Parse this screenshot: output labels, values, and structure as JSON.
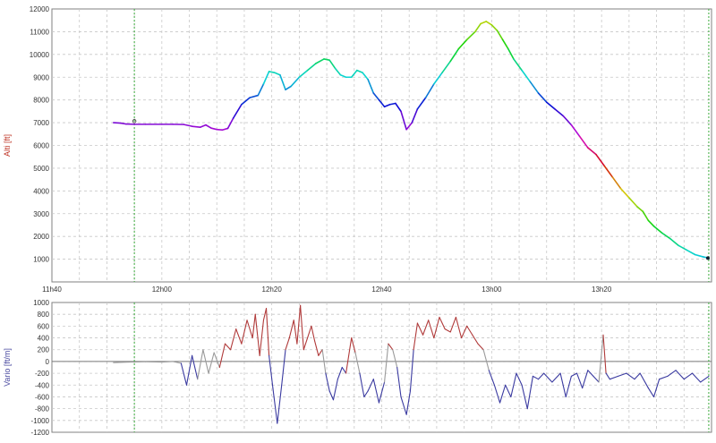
{
  "chart_data": [
    {
      "type": "line",
      "ylabel": "Alti [ft]",
      "ylim": [
        0,
        12000
      ],
      "yticks": [
        1000,
        2000,
        3000,
        4000,
        5000,
        6000,
        7000,
        8000,
        9000,
        10000,
        11000,
        12000
      ],
      "xlim_minutes": [
        0,
        120
      ],
      "xticks": [
        {
          "label": "11h40",
          "minutes": 0
        },
        {
          "label": "12h00",
          "minutes": 20
        },
        {
          "label": "12h20",
          "minutes": 40
        },
        {
          "label": "12h40",
          "minutes": 60
        },
        {
          "label": "13h00",
          "minutes": 80
        },
        {
          "label": "13h20",
          "minutes": 100
        }
      ],
      "marker_minutes": 15,
      "end_marker_minutes": 119.5,
      "color_scale": "altitude-rainbow",
      "grid": true,
      "series": [
        {
          "points": [
            [
              11.2,
              7000
            ],
            [
              12.5,
              6980
            ],
            [
              13.5,
              6940
            ],
            [
              15,
              6930
            ],
            [
              17,
              6930
            ],
            [
              20,
              6930
            ],
            [
              22,
              6930
            ],
            [
              24,
              6920
            ],
            [
              25.5,
              6840
            ],
            [
              27,
              6800
            ],
            [
              28,
              6900
            ],
            [
              29,
              6760
            ],
            [
              30,
              6700
            ],
            [
              31,
              6680
            ],
            [
              32,
              6750
            ],
            [
              33,
              7200
            ],
            [
              34.5,
              7800
            ],
            [
              36,
              8100
            ],
            [
              37.5,
              8200
            ],
            [
              38.5,
              8700
            ],
            [
              39.5,
              9250
            ],
            [
              40.5,
              9200
            ],
            [
              41.5,
              9100
            ],
            [
              42.5,
              8450
            ],
            [
              43.5,
              8600
            ],
            [
              45,
              9000
            ],
            [
              46.5,
              9300
            ],
            [
              48,
              9600
            ],
            [
              49.5,
              9800
            ],
            [
              50.5,
              9750
            ],
            [
              51.5,
              9400
            ],
            [
              52.5,
              9100
            ],
            [
              53.5,
              9000
            ],
            [
              54.5,
              9000
            ],
            [
              55.5,
              9300
            ],
            [
              56.5,
              9200
            ],
            [
              57.5,
              8900
            ],
            [
              58.5,
              8300
            ],
            [
              59.5,
              8000
            ],
            [
              60.5,
              7700
            ],
            [
              61.5,
              7800
            ],
            [
              62.5,
              7850
            ],
            [
              63.5,
              7500
            ],
            [
              64.5,
              6700
            ],
            [
              65.5,
              7000
            ],
            [
              66.5,
              7600
            ],
            [
              68,
              8100
            ],
            [
              69.5,
              8700
            ],
            [
              71,
              9200
            ],
            [
              72.5,
              9700
            ],
            [
              74,
              10250
            ],
            [
              75.5,
              10650
            ],
            [
              77,
              11000
            ],
            [
              78,
              11350
            ],
            [
              79,
              11450
            ],
            [
              80,
              11300
            ],
            [
              81,
              11050
            ],
            [
              82,
              10650
            ],
            [
              83,
              10250
            ],
            [
              84,
              9800
            ],
            [
              85.5,
              9300
            ],
            [
              87,
              8800
            ],
            [
              88.5,
              8300
            ],
            [
              90,
              7900
            ],
            [
              91.5,
              7600
            ],
            [
              93,
              7300
            ],
            [
              94.5,
              6900
            ],
            [
              96,
              6400
            ],
            [
              97.5,
              5900
            ],
            [
              99,
              5600
            ],
            [
              100.5,
              5100
            ],
            [
              102,
              4600
            ],
            [
              103.5,
              4100
            ],
            [
              105,
              3700
            ],
            [
              106.5,
              3300
            ],
            [
              107.5,
              3100
            ],
            [
              108.5,
              2700
            ],
            [
              109.5,
              2450
            ],
            [
              111,
              2150
            ],
            [
              112.5,
              1900
            ],
            [
              114,
              1600
            ],
            [
              115.5,
              1400
            ],
            [
              117,
              1200
            ],
            [
              118.5,
              1100
            ],
            [
              119.5,
              1050
            ]
          ]
        }
      ]
    },
    {
      "type": "line",
      "ylabel": "Vario [ft/m]",
      "ylim": [
        -1200,
        1000
      ],
      "yticks": [
        -1200,
        -1000,
        -800,
        -600,
        -400,
        -200,
        0,
        200,
        400,
        600,
        800,
        1000
      ],
      "xlim_minutes": [
        0,
        120
      ],
      "marker_minutes": 15,
      "end_marker_minutes": 119.5,
      "color_rule": "red above zero, blue below zero",
      "grid": true,
      "series": [
        {
          "points": [
            [
              11.2,
              -20
            ],
            [
              14,
              -10
            ],
            [
              17,
              -5
            ],
            [
              20,
              -10
            ],
            [
              22,
              0
            ],
            [
              23.5,
              -30
            ],
            [
              24.5,
              -400
            ],
            [
              25.5,
              100
            ],
            [
              26.5,
              -300
            ],
            [
              27.5,
              200
            ],
            [
              28.5,
              -200
            ],
            [
              29.5,
              150
            ],
            [
              30.5,
              -100
            ],
            [
              31.5,
              300
            ],
            [
              32.5,
              200
            ],
            [
              33.5,
              550
            ],
            [
              34.5,
              300
            ],
            [
              35.5,
              700
            ],
            [
              36.5,
              400
            ],
            [
              37,
              800
            ],
            [
              37.8,
              100
            ],
            [
              38.5,
              700
            ],
            [
              39,
              900
            ],
            [
              39.5,
              100
            ],
            [
              40.2,
              -450
            ],
            [
              41,
              -1050
            ],
            [
              41.8,
              -400
            ],
            [
              42.5,
              200
            ],
            [
              43.2,
              400
            ],
            [
              44,
              700
            ],
            [
              44.6,
              300
            ],
            [
              45.2,
              950
            ],
            [
              45.8,
              200
            ],
            [
              46.5,
              400
            ],
            [
              47.2,
              600
            ],
            [
              47.8,
              350
            ],
            [
              48.5,
              100
            ],
            [
              49.2,
              200
            ],
            [
              49.8,
              -200
            ],
            [
              50.5,
              -500
            ],
            [
              51.2,
              -650
            ],
            [
              52,
              -300
            ],
            [
              52.8,
              -100
            ],
            [
              53.5,
              -200
            ],
            [
              54.5,
              400
            ],
            [
              55.2,
              150
            ],
            [
              56,
              -200
            ],
            [
              56.8,
              -600
            ],
            [
              57.5,
              -500
            ],
            [
              58.5,
              -300
            ],
            [
              59.5,
              -700
            ],
            [
              60.5,
              -350
            ],
            [
              61.2,
              300
            ],
            [
              62,
              200
            ],
            [
              62.8,
              -100
            ],
            [
              63.5,
              -600
            ],
            [
              64.5,
              -900
            ],
            [
              65.2,
              -500
            ],
            [
              65.8,
              200
            ],
            [
              66.5,
              650
            ],
            [
              67.5,
              450
            ],
            [
              68.5,
              700
            ],
            [
              69.5,
              400
            ],
            [
              70.5,
              750
            ],
            [
              71.5,
              550
            ],
            [
              72.5,
              500
            ],
            [
              73.5,
              750
            ],
            [
              74.5,
              400
            ],
            [
              75.5,
              600
            ],
            [
              76.5,
              450
            ],
            [
              77.5,
              300
            ],
            [
              78.5,
              200
            ],
            [
              79.5,
              -150
            ],
            [
              80.5,
              -400
            ],
            [
              81.5,
              -700
            ],
            [
              82.5,
              -400
            ],
            [
              83.5,
              -600
            ],
            [
              84.5,
              -200
            ],
            [
              85.5,
              -400
            ],
            [
              86.5,
              -800
            ],
            [
              87.5,
              -250
            ],
            [
              88.5,
              -300
            ],
            [
              89.5,
              -200
            ],
            [
              91,
              -350
            ],
            [
              92.5,
              -200
            ],
            [
              93.5,
              -600
            ],
            [
              94.5,
              -250
            ],
            [
              95.5,
              -200
            ],
            [
              96.5,
              -450
            ],
            [
              97.5,
              -150
            ],
            [
              98.5,
              -250
            ],
            [
              99.5,
              -350
            ],
            [
              100.3,
              450
            ],
            [
              100.8,
              -200
            ],
            [
              101.5,
              -300
            ],
            [
              103,
              -250
            ],
            [
              104.5,
              -200
            ],
            [
              106,
              -300
            ],
            [
              107,
              -200
            ],
            [
              108.5,
              -450
            ],
            [
              109.5,
              -600
            ],
            [
              110.5,
              -300
            ],
            [
              112,
              -250
            ],
            [
              113.5,
              -150
            ],
            [
              115,
              -300
            ],
            [
              116.5,
              -200
            ],
            [
              118,
              -350
            ],
            [
              119.5,
              -250
            ]
          ]
        }
      ]
    }
  ]
}
